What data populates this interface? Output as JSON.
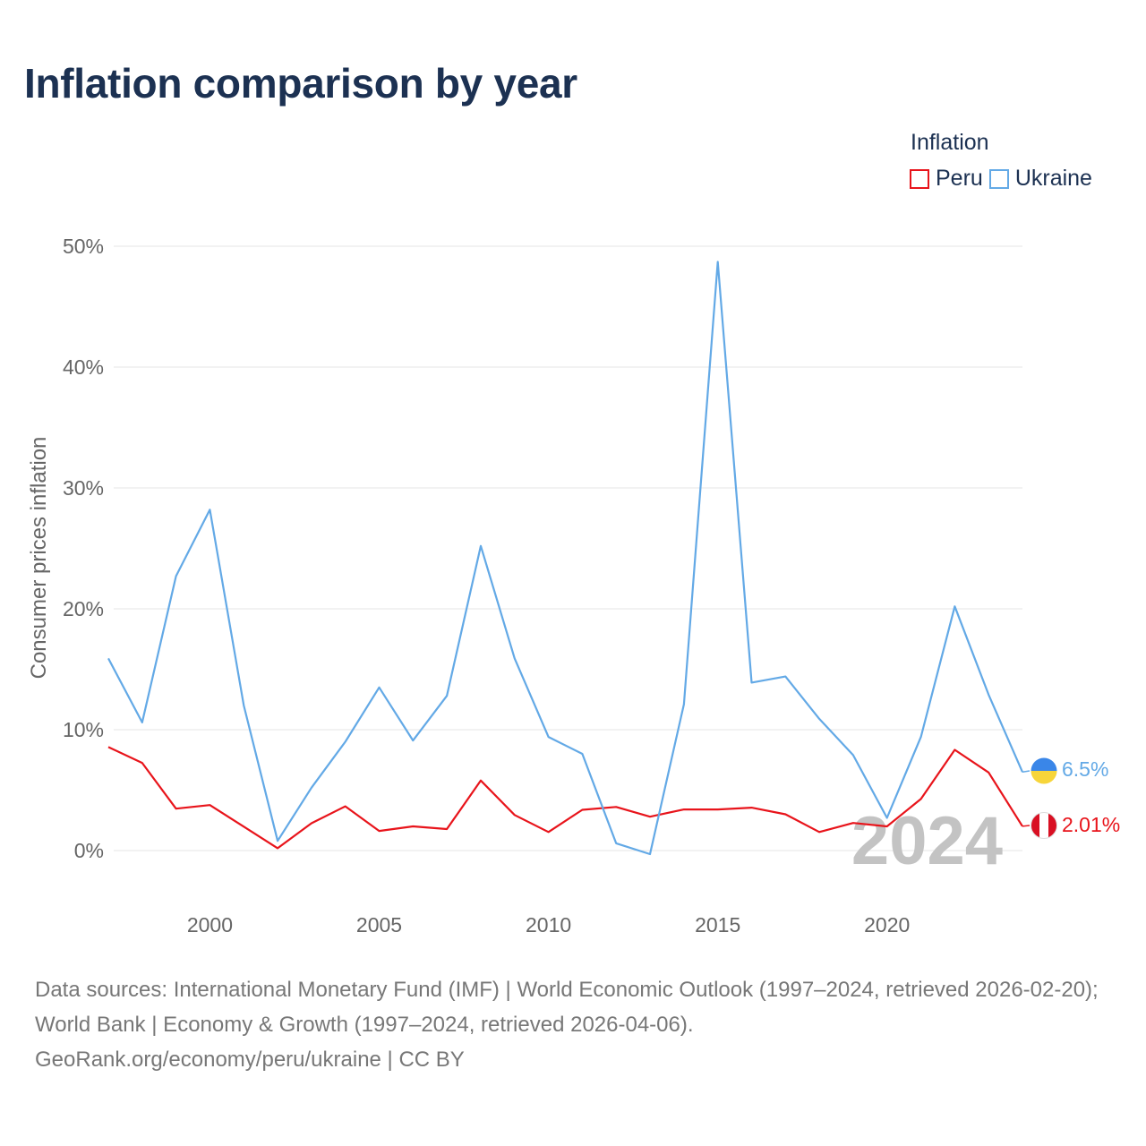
{
  "title": "Inflation comparison by year",
  "legend": {
    "title": "Inflation",
    "items": [
      {
        "name": "Peru",
        "color": "#e8141b"
      },
      {
        "name": "Ukraine",
        "color": "#63a9e6"
      }
    ]
  },
  "chart_data": {
    "type": "line",
    "title": "Inflation comparison by year",
    "xlabel": "",
    "ylabel": "Consumer prices inflation",
    "x": [
      1997,
      1998,
      1999,
      2000,
      2001,
      2002,
      2003,
      2004,
      2005,
      2006,
      2007,
      2008,
      2009,
      2010,
      2011,
      2012,
      2013,
      2014,
      2015,
      2016,
      2017,
      2018,
      2019,
      2020,
      2021,
      2022,
      2023,
      2024
    ],
    "xlim": [
      1997,
      2024
    ],
    "ylim": [
      -5,
      50
    ],
    "xticks": [
      2000,
      2005,
      2010,
      2015,
      2020
    ],
    "xtick_labels": [
      "2000",
      "2005",
      "2010",
      "2015",
      "2020"
    ],
    "yticks": [
      0,
      10,
      20,
      30,
      40,
      50
    ],
    "ytick_labels": [
      "0%",
      "10%",
      "20%",
      "30%",
      "40%",
      "50%"
    ],
    "grid": true,
    "legend_position": "top-right",
    "current_year": "2024",
    "series": [
      {
        "name": "Peru",
        "color": "#e8141b",
        "values": [
          8.56,
          7.25,
          3.47,
          3.76,
          1.98,
          0.19,
          2.26,
          3.66,
          1.62,
          2.0,
          1.78,
          5.79,
          2.94,
          1.53,
          3.37,
          3.61,
          2.8,
          3.4,
          3.4,
          3.55,
          3.0,
          1.53,
          2.28,
          2.0,
          4.27,
          8.33,
          6.46,
          2.01
        ],
        "end_label": "2.01%",
        "flag": "peru"
      },
      {
        "name": "Ukraine",
        "color": "#63a9e6",
        "values": [
          15.9,
          10.6,
          22.7,
          28.2,
          12.0,
          0.8,
          5.2,
          9.0,
          13.5,
          9.1,
          12.8,
          25.2,
          15.9,
          9.4,
          8.0,
          0.6,
          -0.3,
          12.1,
          48.7,
          13.9,
          14.4,
          10.9,
          7.9,
          2.7,
          9.4,
          20.2,
          12.9,
          6.5
        ],
        "end_label": "6.5%",
        "flag": "ukraine"
      }
    ]
  },
  "source": {
    "line1": "Data sources: International Monetary Fund (IMF) | World Economic Outlook (1997–2024, retrieved 2026-02-20); World Bank | Economy & Growth (1997–2024, retrieved 2026-04-06).",
    "line2": "GeoRank.org/economy/peru/ukraine | CC BY"
  }
}
